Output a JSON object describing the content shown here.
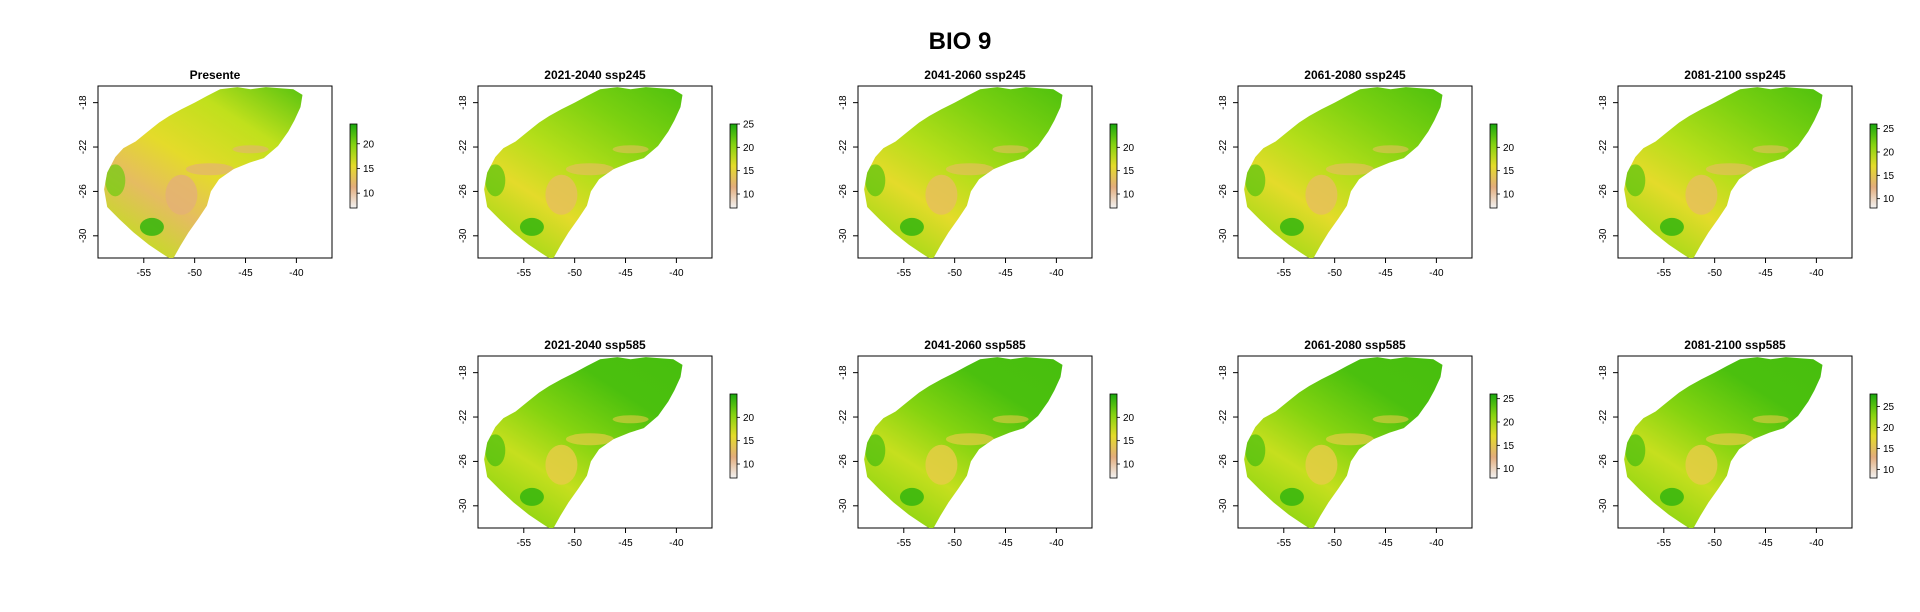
{
  "title": "BIO 9",
  "x_ticks": [
    "-55",
    "-50",
    "-45",
    "-40"
  ],
  "y_ticks": [
    "-18",
    "-22",
    "-26",
    "-30"
  ],
  "colors": {
    "ramp": [
      "#f2f2f2",
      "#e8c4b0",
      "#e3ad7c",
      "#e6c05a",
      "#e4db2a",
      "#bfe01b",
      "#86d410",
      "#49bf0e",
      "#1aa80e"
    ]
  },
  "panels": [
    {
      "title": "Presente",
      "scenario": "present",
      "legend_ticks": [
        "20",
        "15",
        "10"
      ],
      "legend_min": 7,
      "legend_max": 24
    },
    {
      "title": "2021-2040 ssp245",
      "scenario": "ssp245",
      "legend_ticks": [
        "25",
        "20",
        "15",
        "10"
      ],
      "legend_min": 7,
      "legend_max": 25
    },
    {
      "title": "2041-2060 ssp245",
      "scenario": "ssp245",
      "legend_ticks": [
        "20",
        "15",
        "10"
      ],
      "legend_min": 7,
      "legend_max": 25
    },
    {
      "title": "2061-2080 ssp245",
      "scenario": "ssp245",
      "legend_ticks": [
        "20",
        "15",
        "10"
      ],
      "legend_min": 7,
      "legend_max": 25
    },
    {
      "title": "2081-2100 ssp245",
      "scenario": "ssp245",
      "legend_ticks": [
        "25",
        "20",
        "15",
        "10"
      ],
      "legend_min": 8,
      "legend_max": 26
    },
    {
      "title": "2021-2040 ssp585",
      "scenario": "ssp585",
      "legend_ticks": [
        "20",
        "15",
        "10"
      ],
      "legend_min": 7,
      "legend_max": 25
    },
    {
      "title": "2041-2060 ssp585",
      "scenario": "ssp585",
      "legend_ticks": [
        "20",
        "15",
        "10"
      ],
      "legend_min": 7,
      "legend_max": 25
    },
    {
      "title": "2061-2080 ssp585",
      "scenario": "ssp585",
      "legend_ticks": [
        "25",
        "20",
        "15",
        "10"
      ],
      "legend_min": 8,
      "legend_max": 26
    },
    {
      "title": "2081-2100 ssp585",
      "scenario": "ssp585",
      "legend_ticks": [
        "25",
        "20",
        "15",
        "10"
      ],
      "legend_min": 8,
      "legend_max": 28
    }
  ]
}
